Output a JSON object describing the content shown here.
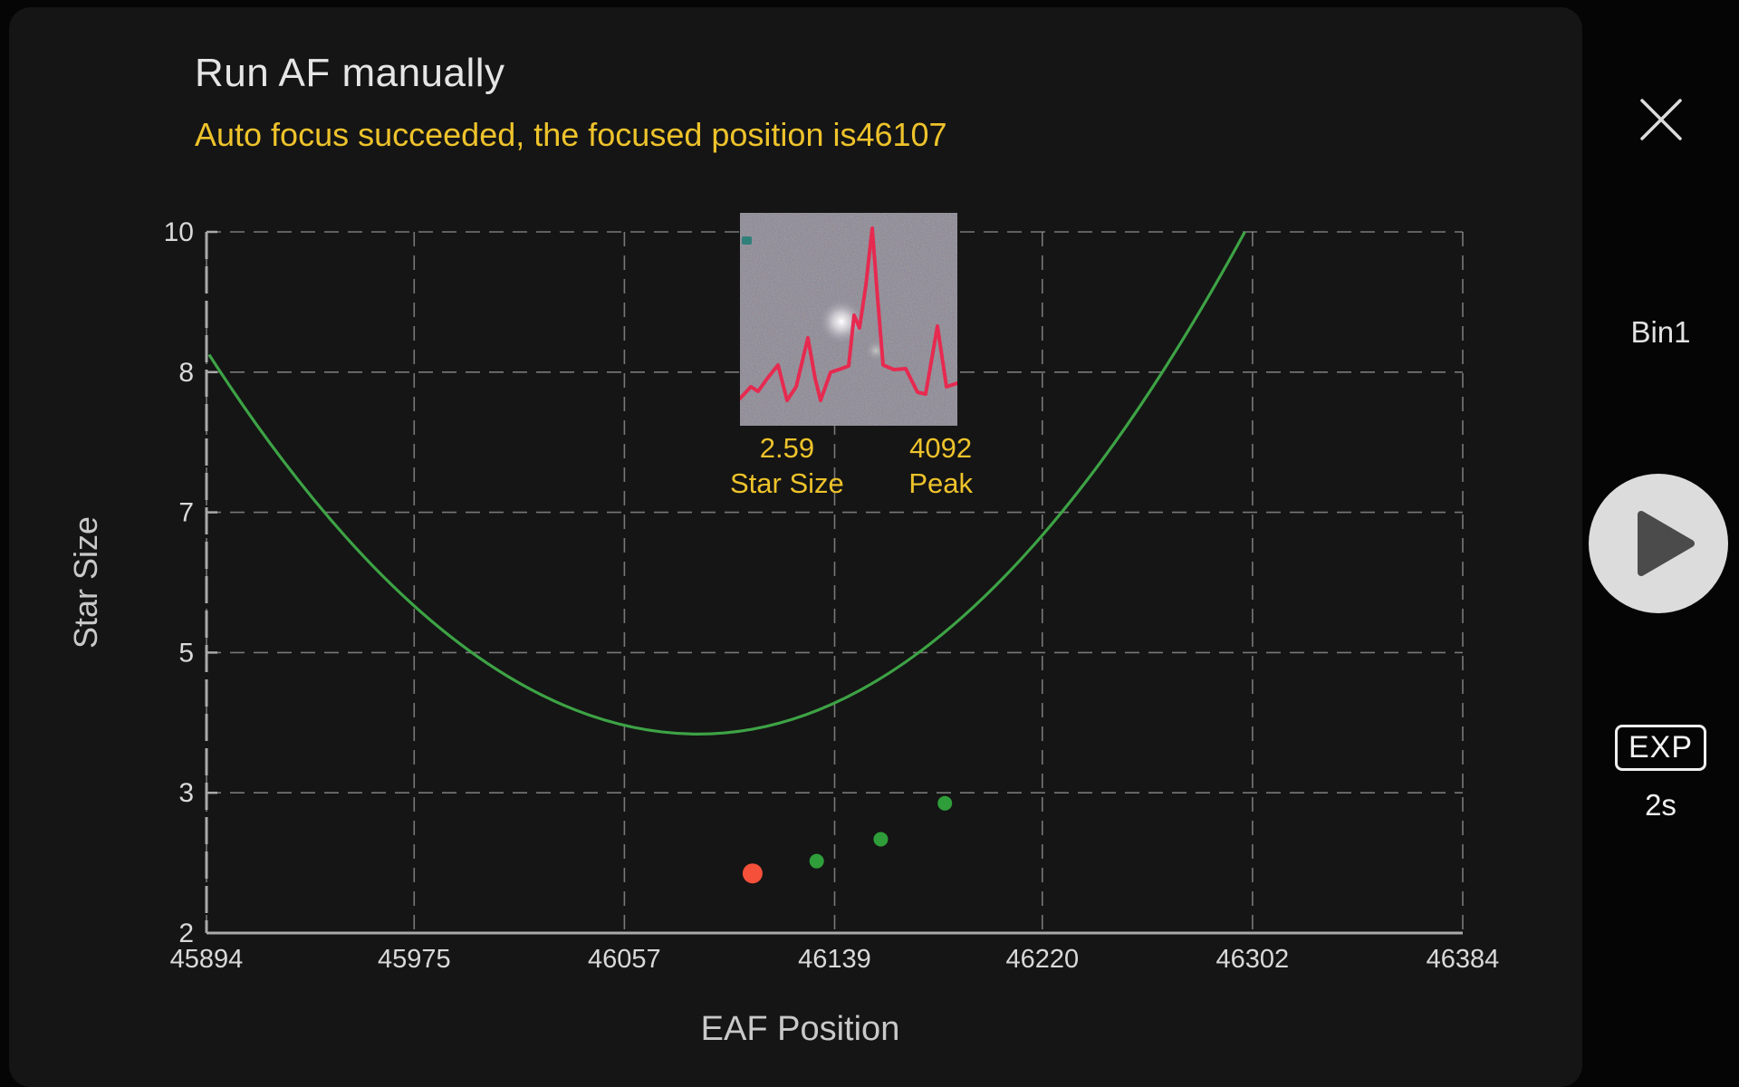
{
  "window": {
    "title": "Run AF manually",
    "message": "Auto focus succeeded, the focused position is46107"
  },
  "colors": {
    "accent_yellow": "#eec32b",
    "curve_green": "#3da345",
    "point_green": "#2f9e3a",
    "point_red": "#f4503a",
    "profile_pink": "#e62a50",
    "grid_gray": "#9a9a9a",
    "axis_gray": "#aaaaaa",
    "tick_text": "#d9d9d9",
    "axis_title_text": "#c9c9c9"
  },
  "inset": {
    "star_size_value": "2.59",
    "star_size_label": "Star Size",
    "peak_value": "4092",
    "peak_label": "Peak"
  },
  "sidebar": {
    "bin_label": "Bin1",
    "exp_label": "EXP",
    "exp_value": "2s"
  },
  "chart_data": {
    "type": "line",
    "title": "",
    "xlabel": "EAF Position",
    "ylabel": "Star Size",
    "xlim": [
      45894,
      46384
    ],
    "ylim": [
      2,
      10
    ],
    "x_ticks": [
      45894,
      45975,
      46057,
      46139,
      46220,
      46302,
      46384
    ],
    "y_tick_labels": [
      "10",
      "8",
      "7",
      "5",
      "3",
      "2"
    ],
    "grid": "dashed",
    "legend": "none",
    "curve": {
      "name": "autofocus-fit-curve",
      "x_start": 45895,
      "y_start": 8.6,
      "x_vertex": 46086,
      "y_vertex": 4.27,
      "x_end": 46299,
      "y_end": 10.0
    },
    "points": [
      {
        "x": 46107,
        "y": 2.68,
        "r": 11,
        "role": "focused-position",
        "color_key": "point_red"
      },
      {
        "x": 46132,
        "y": 2.82,
        "r": 8,
        "role": "sample",
        "color_key": "point_green"
      },
      {
        "x": 46157,
        "y": 3.07,
        "r": 8,
        "role": "sample",
        "color_key": "point_green"
      },
      {
        "x": 46182,
        "y": 3.48,
        "r": 8,
        "role": "sample",
        "color_key": "point_green"
      }
    ]
  }
}
